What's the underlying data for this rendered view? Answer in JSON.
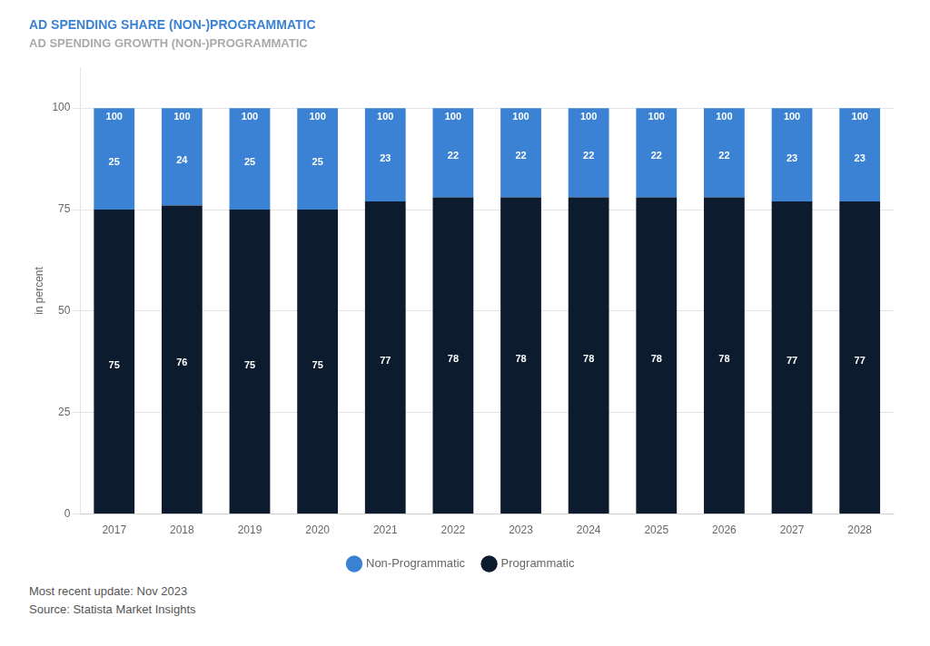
{
  "chart_data": {
    "type": "bar",
    "title": "AD SPENDING SHARE (NON-)PROGRAMMATIC",
    "subtitle": "AD SPENDING GROWTH (NON-)PROGRAMMATIC",
    "y_label": "in percent",
    "categories": [
      "2017",
      "2018",
      "2019",
      "2020",
      "2021",
      "2022",
      "2023",
      "2024",
      "2025",
      "2026",
      "2027",
      "2028"
    ],
    "series": [
      {
        "name": "Programmatic",
        "color": "#0d1b2e",
        "values": [
          75,
          76,
          75,
          75,
          77,
          78,
          78,
          78,
          78,
          78,
          77,
          77
        ]
      },
      {
        "name": "Non-Programmatic",
        "color": "#3b82d4",
        "values": [
          25,
          24,
          25,
          25,
          23,
          22,
          22,
          22,
          22,
          22,
          23,
          23
        ]
      }
    ],
    "totals": [
      100,
      100,
      100,
      100,
      100,
      100,
      100,
      100,
      100,
      100,
      100,
      100
    ],
    "stacked": true,
    "data_labels": true,
    "ylim": [
      0,
      110
    ],
    "yticks": [
      0,
      25,
      50,
      75,
      100
    ],
    "grid": true,
    "legend": "bottom",
    "annotations": [
      "Most recent update: Nov 2023",
      "Source: Statista Market Insights"
    ]
  }
}
